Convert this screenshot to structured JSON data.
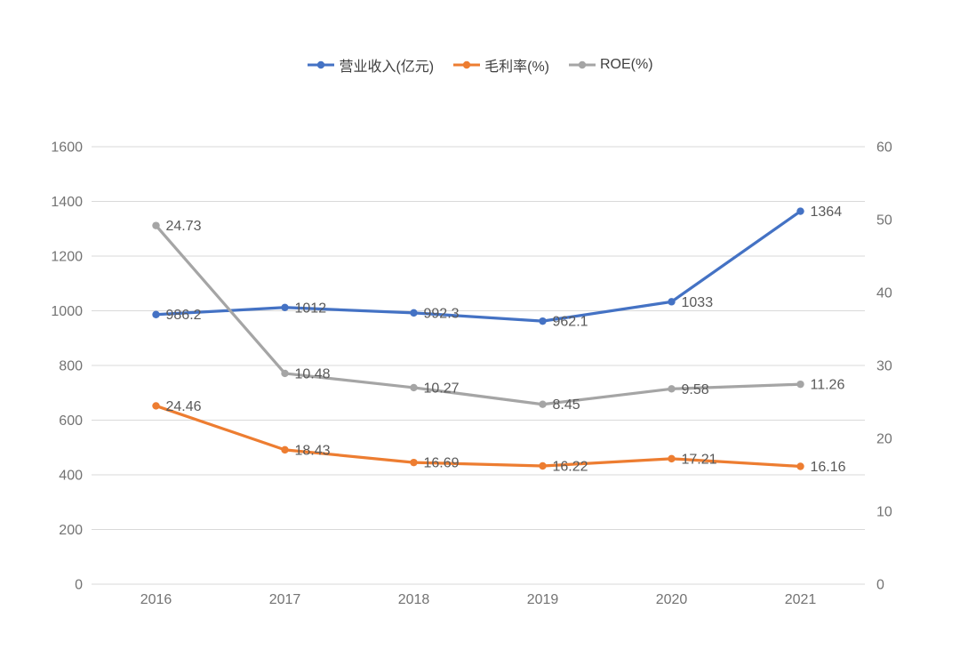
{
  "chart_data": {
    "type": "line",
    "categories": [
      "2016",
      "2017",
      "2018",
      "2019",
      "2020",
      "2021"
    ],
    "series": [
      {
        "key": "revenue",
        "name": "营业收入(亿元)",
        "axis": "left",
        "color": "#4472C4",
        "values": [
          986.2,
          1012,
          992.3,
          962.1,
          1033,
          1364
        ],
        "labels": [
          "986.2",
          "1012",
          "992.3",
          "962.1",
          "1033",
          "1364"
        ]
      },
      {
        "key": "gross-margin",
        "name": "毛利率(%)",
        "axis": "right",
        "color": "#ED7D31",
        "values": [
          24.46,
          18.43,
          16.69,
          16.22,
          17.21,
          16.16
        ],
        "labels": [
          "24.46",
          "18.43",
          "16.69",
          "16.22",
          "17.21",
          "16.16"
        ]
      },
      {
        "key": "roe",
        "name": "ROE(%)",
        "axis": "right",
        "color": "#A5A5A5",
        "values": [
          24.73,
          10.48,
          10.27,
          8.45,
          9.58,
          11.26
        ],
        "labels": [
          "24.73",
          "10.48",
          "10.27",
          "8.45",
          "9.58",
          "11.26"
        ]
      }
    ],
    "stacked": true,
    "stacking_note": "Series sharing an axis are plotted cumulatively stacked (ROE line is drawn at 毛利率+ROE on the right axis); data labels show raw per-series values.",
    "left_axis": {
      "min": 0,
      "max": 1600,
      "step": 200,
      "ticks": [
        "0",
        "200",
        "400",
        "600",
        "800",
        "1000",
        "1200",
        "1400",
        "1600"
      ]
    },
    "right_axis": {
      "min": 0,
      "max": 60,
      "step": 10,
      "ticks": [
        "0",
        "10",
        "20",
        "30",
        "40",
        "50",
        "60"
      ]
    },
    "grid": true,
    "legend_position": "top-center",
    "marker": "circle",
    "colors": {
      "grid_line": "#D9D9D9",
      "axis_text": "#737373",
      "data_label_text": "#595959",
      "legend_text": "#3F3F3F",
      "background": "#FFFFFF"
    }
  }
}
